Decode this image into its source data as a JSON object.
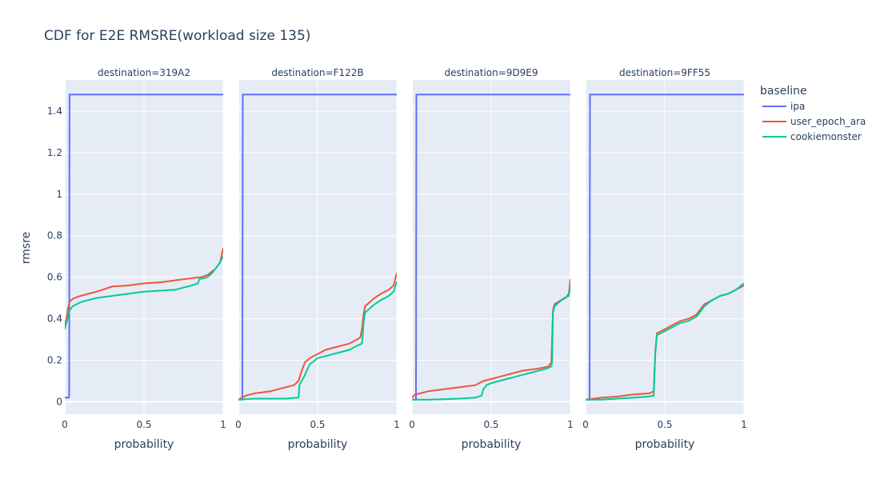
{
  "chart_data": {
    "type": "line",
    "title": "CDF for E2E RMSRE(workload size 135)",
    "ylabel": "rmsre",
    "legend_title": "baseline",
    "legend_position": "right",
    "grid": true,
    "ylim": [
      -0.06,
      1.55
    ],
    "y_ticks": [
      0,
      0.2,
      0.4,
      0.6,
      0.8,
      1,
      1.2,
      1.4
    ],
    "y_tick_labels": [
      "0",
      "0.2",
      "0.4",
      "0.6",
      "0.8",
      "1",
      "1.2",
      "1.4"
    ],
    "xlim": [
      0,
      1
    ],
    "x_ticks": [
      0,
      0.5,
      1
    ],
    "x_tick_labels": [
      "0",
      "0.5",
      "1"
    ],
    "series_styles": [
      {
        "name": "ipa",
        "color": "#636efa"
      },
      {
        "name": "user_epoch_ara",
        "color": "#ef553b"
      },
      {
        "name": "cookiemonster",
        "color": "#00cc96"
      }
    ],
    "panels": [
      {
        "title": "destination=319A2",
        "xlabel": "probability",
        "series": [
          {
            "name": "ipa",
            "points": [
              [
                0,
                0.02
              ],
              [
                0.025,
                0.02
              ],
              [
                0.028,
                0.035
              ],
              [
                0.03,
                1.48
              ],
              [
                1,
                1.48
              ]
            ]
          },
          {
            "name": "user_epoch_ara",
            "points": [
              [
                0,
                0.37
              ],
              [
                0.01,
                0.4
              ],
              [
                0.02,
                0.45
              ],
              [
                0.03,
                0.48
              ],
              [
                0.04,
                0.49
              ],
              [
                0.06,
                0.5
              ],
              [
                0.1,
                0.51
              ],
              [
                0.15,
                0.52
              ],
              [
                0.2,
                0.53
              ],
              [
                0.3,
                0.555
              ],
              [
                0.4,
                0.56
              ],
              [
                0.5,
                0.57
              ],
              [
                0.6,
                0.575
              ],
              [
                0.7,
                0.585
              ],
              [
                0.8,
                0.595
              ],
              [
                0.86,
                0.6
              ],
              [
                0.9,
                0.61
              ],
              [
                0.95,
                0.64
              ],
              [
                0.98,
                0.67
              ],
              [
                1,
                0.74
              ]
            ]
          },
          {
            "name": "cookiemonster",
            "points": [
              [
                0,
                0.35
              ],
              [
                0.01,
                0.38
              ],
              [
                0.02,
                0.41
              ],
              [
                0.03,
                0.44
              ],
              [
                0.05,
                0.46
              ],
              [
                0.1,
                0.48
              ],
              [
                0.15,
                0.49
              ],
              [
                0.2,
                0.5
              ],
              [
                0.3,
                0.51
              ],
              [
                0.4,
                0.52
              ],
              [
                0.5,
                0.53
              ],
              [
                0.6,
                0.535
              ],
              [
                0.7,
                0.54
              ],
              [
                0.8,
                0.56
              ],
              [
                0.84,
                0.57
              ],
              [
                0.85,
                0.59
              ],
              [
                0.9,
                0.6
              ],
              [
                0.93,
                0.62
              ],
              [
                0.95,
                0.64
              ],
              [
                0.97,
                0.66
              ],
              [
                1,
                0.7
              ]
            ]
          }
        ]
      },
      {
        "title": "destination=F122B",
        "xlabel": "probability",
        "series": [
          {
            "name": "ipa",
            "points": [
              [
                0,
                0.01
              ],
              [
                0.025,
                0.01
              ],
              [
                0.028,
                1.48
              ],
              [
                1,
                1.48
              ]
            ]
          },
          {
            "name": "user_epoch_ara",
            "points": [
              [
                0,
                0.01
              ],
              [
                0.05,
                0.03
              ],
              [
                0.1,
                0.04
              ],
              [
                0.2,
                0.05
              ],
              [
                0.3,
                0.07
              ],
              [
                0.35,
                0.08
              ],
              [
                0.38,
                0.1
              ],
              [
                0.4,
                0.15
              ],
              [
                0.42,
                0.19
              ],
              [
                0.45,
                0.21
              ],
              [
                0.5,
                0.23
              ],
              [
                0.55,
                0.25
              ],
              [
                0.6,
                0.26
              ],
              [
                0.65,
                0.27
              ],
              [
                0.7,
                0.28
              ],
              [
                0.75,
                0.3
              ],
              [
                0.77,
                0.31
              ],
              [
                0.78,
                0.35
              ],
              [
                0.79,
                0.42
              ],
              [
                0.8,
                0.46
              ],
              [
                0.83,
                0.48
              ],
              [
                0.86,
                0.5
              ],
              [
                0.9,
                0.52
              ],
              [
                0.95,
                0.54
              ],
              [
                0.98,
                0.56
              ],
              [
                1,
                0.62
              ]
            ]
          },
          {
            "name": "cookiemonster",
            "points": [
              [
                0,
                0.01
              ],
              [
                0.1,
                0.015
              ],
              [
                0.2,
                0.015
              ],
              [
                0.3,
                0.015
              ],
              [
                0.38,
                0.02
              ],
              [
                0.385,
                0.08
              ],
              [
                0.4,
                0.1
              ],
              [
                0.42,
                0.13
              ],
              [
                0.45,
                0.18
              ],
              [
                0.5,
                0.21
              ],
              [
                0.55,
                0.22
              ],
              [
                0.6,
                0.23
              ],
              [
                0.65,
                0.24
              ],
              [
                0.7,
                0.25
              ],
              [
                0.75,
                0.27
              ],
              [
                0.78,
                0.28
              ],
              [
                0.785,
                0.32
              ],
              [
                0.79,
                0.38
              ],
              [
                0.8,
                0.43
              ],
              [
                0.83,
                0.45
              ],
              [
                0.86,
                0.47
              ],
              [
                0.9,
                0.49
              ],
              [
                0.95,
                0.51
              ],
              [
                0.98,
                0.53
              ],
              [
                1,
                0.58
              ]
            ]
          }
        ]
      },
      {
        "title": "destination=9D9E9",
        "xlabel": "probability",
        "series": [
          {
            "name": "ipa",
            "points": [
              [
                0,
                0.01
              ],
              [
                0.025,
                0.01
              ],
              [
                0.028,
                1.48
              ],
              [
                1,
                1.48
              ]
            ]
          },
          {
            "name": "user_epoch_ara",
            "points": [
              [
                0,
                0.02
              ],
              [
                0.02,
                0.035
              ],
              [
                0.05,
                0.04
              ],
              [
                0.1,
                0.05
              ],
              [
                0.2,
                0.06
              ],
              [
                0.3,
                0.07
              ],
              [
                0.4,
                0.08
              ],
              [
                0.45,
                0.1
              ],
              [
                0.5,
                0.11
              ],
              [
                0.55,
                0.12
              ],
              [
                0.6,
                0.13
              ],
              [
                0.65,
                0.14
              ],
              [
                0.7,
                0.15
              ],
              [
                0.8,
                0.16
              ],
              [
                0.86,
                0.17
              ],
              [
                0.88,
                0.19
              ],
              [
                0.89,
                0.44
              ],
              [
                0.9,
                0.47
              ],
              [
                0.94,
                0.49
              ],
              [
                0.97,
                0.5
              ],
              [
                0.99,
                0.52
              ],
              [
                1,
                0.59
              ]
            ]
          },
          {
            "name": "cookiemonster",
            "points": [
              [
                0,
                0.01
              ],
              [
                0.1,
                0.01
              ],
              [
                0.2,
                0.012
              ],
              [
                0.3,
                0.015
              ],
              [
                0.4,
                0.02
              ],
              [
                0.44,
                0.03
              ],
              [
                0.45,
                0.06
              ],
              [
                0.47,
                0.08
              ],
              [
                0.5,
                0.09
              ],
              [
                0.55,
                0.1
              ],
              [
                0.6,
                0.11
              ],
              [
                0.65,
                0.12
              ],
              [
                0.7,
                0.13
              ],
              [
                0.75,
                0.14
              ],
              [
                0.8,
                0.15
              ],
              [
                0.85,
                0.16
              ],
              [
                0.88,
                0.17
              ],
              [
                0.885,
                0.2
              ],
              [
                0.89,
                0.43
              ],
              [
                0.9,
                0.46
              ],
              [
                0.93,
                0.48
              ],
              [
                0.96,
                0.5
              ],
              [
                0.99,
                0.51
              ],
              [
                1,
                0.56
              ]
            ]
          }
        ]
      },
      {
        "title": "destination=9FF55",
        "xlabel": "probability",
        "series": [
          {
            "name": "ipa",
            "points": [
              [
                0,
                0.01
              ],
              [
                0.025,
                0.01
              ],
              [
                0.028,
                1.48
              ],
              [
                1,
                1.48
              ]
            ]
          },
          {
            "name": "user_epoch_ara",
            "points": [
              [
                0,
                0.01
              ],
              [
                0.1,
                0.02
              ],
              [
                0.2,
                0.025
              ],
              [
                0.3,
                0.035
              ],
              [
                0.4,
                0.04
              ],
              [
                0.43,
                0.05
              ],
              [
                0.44,
                0.24
              ],
              [
                0.45,
                0.33
              ],
              [
                0.5,
                0.35
              ],
              [
                0.55,
                0.37
              ],
              [
                0.6,
                0.39
              ],
              [
                0.65,
                0.4
              ],
              [
                0.7,
                0.42
              ],
              [
                0.75,
                0.47
              ],
              [
                0.8,
                0.49
              ],
              [
                0.85,
                0.51
              ],
              [
                0.9,
                0.52
              ],
              [
                0.95,
                0.54
              ],
              [
                1,
                0.56
              ]
            ]
          },
          {
            "name": "cookiemonster",
            "points": [
              [
                0,
                0.01
              ],
              [
                0.1,
                0.01
              ],
              [
                0.2,
                0.015
              ],
              [
                0.3,
                0.02
              ],
              [
                0.4,
                0.025
              ],
              [
                0.43,
                0.03
              ],
              [
                0.44,
                0.23
              ],
              [
                0.45,
                0.32
              ],
              [
                0.5,
                0.34
              ],
              [
                0.55,
                0.36
              ],
              [
                0.6,
                0.38
              ],
              [
                0.65,
                0.39
              ],
              [
                0.7,
                0.41
              ],
              [
                0.75,
                0.46
              ],
              [
                0.8,
                0.49
              ],
              [
                0.85,
                0.51
              ],
              [
                0.9,
                0.52
              ],
              [
                0.95,
                0.54
              ],
              [
                1,
                0.57
              ]
            ]
          }
        ]
      }
    ]
  }
}
